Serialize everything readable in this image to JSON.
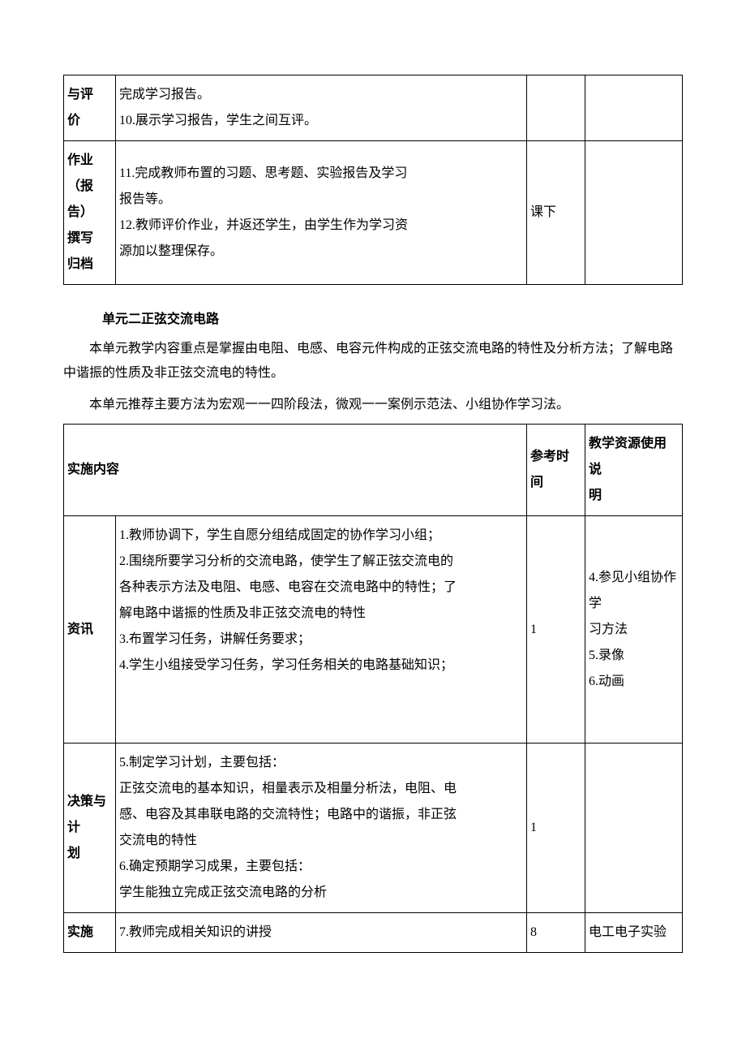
{
  "table1": {
    "row1": {
      "label": "与评\n价",
      "content": "完成学习报告。\n10.展示学习报告，学生之间互评。",
      "time": "",
      "resource": ""
    },
    "row2": {
      "label": "作业\n（报\n告）\n撰写\n归档",
      "content": "11.完成教师布置的习题、思考题、实验报告及学习\n报告等。\n12.教师评价作业，并返还学生，由学生作为学习资\n源加以整理保存。",
      "time": "课下",
      "resource": ""
    }
  },
  "section": {
    "title": "单元二正弦交流电路",
    "p1": "本单元教学内容重点是掌握由电阻、电感、电容元件构成的正弦交流电路的特性及分析方法；了解电路中谐振的性质及非正弦交流电的特性。",
    "p2": "本单元推荐主要方法为宏观一一四阶段法，微观一一案例示范法、小组协作学习法。"
  },
  "table2": {
    "header": {
      "c1": "实施内容",
      "c2": "参考时间",
      "c3": "教学资源使用说\n明"
    },
    "row1": {
      "label": "资讯",
      "content": "1.教师协调下，学生自愿分组结成固定的协作学习小组；\n2.围绕所要学习分析的交流电路，使学生了解正弦交流电的\n各种表示方法及电阻、电感、电容在交流电路中的特性；了\n解电路中谐振的性质及非正弦交流电的特性\n3.布置学习任务，讲解任务要求；\n4.学生小组接受学习任务，学习任务相关的电路基础知识；",
      "time": "1",
      "resource": "4.参见小组协作学\n习方法\n5.录像\n6.动画"
    },
    "row2": {
      "label": "决策与\n计\n划",
      "content": "5.制定学习计划，主要包括：\n正弦交流电的基本知识，相量表示及相量分析法，电阻、电\n感、电容及其串联电路的交流特性；电路中的谐振，非正弦\n交流电的特性\n6.确定预期学习成果，主要包括：\n学生能独立完成正弦交流电路的分析",
      "time": "1",
      "resource": ""
    },
    "row3": {
      "label": "实施",
      "content": "7.教师完成相关知识的讲授",
      "time": "8",
      "resource": "电工电子实验"
    }
  }
}
